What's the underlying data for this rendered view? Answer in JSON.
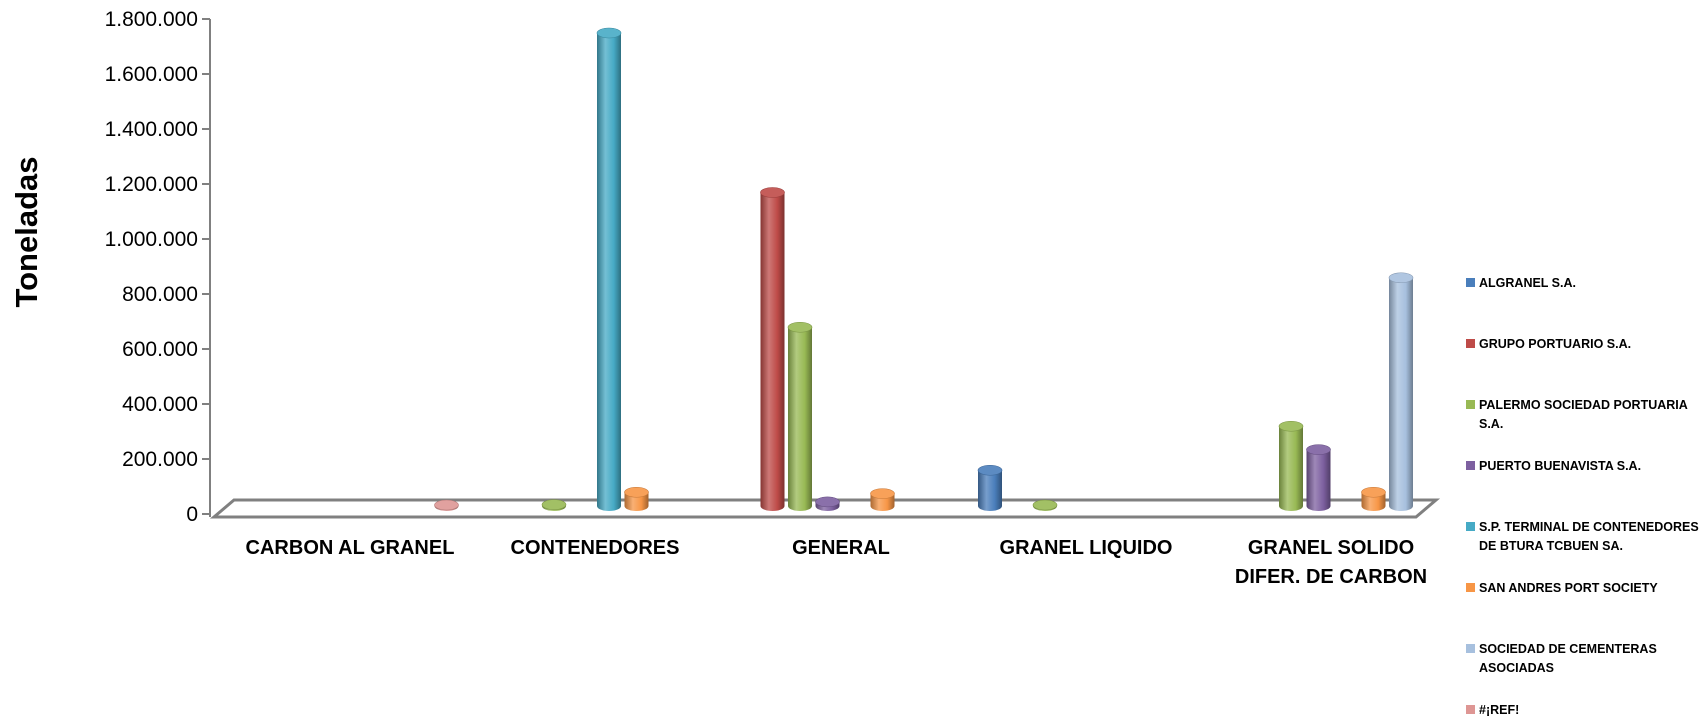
{
  "chart_data": {
    "type": "bar",
    "ylabel": "Toneladas",
    "xlabel": "",
    "ylim": [
      0,
      1800000
    ],
    "yticks": [
      0,
      200000,
      400000,
      600000,
      800000,
      1000000,
      1200000,
      1400000,
      1600000,
      1800000
    ],
    "ytick_labels": [
      "0",
      "200.000",
      "400.000",
      "600.000",
      "800.000",
      "1.000.000",
      "1.200.000",
      "1.400.000",
      "1.600.000",
      "1.800.000"
    ],
    "categories": [
      [
        "CARBON AL GRANEL"
      ],
      [
        "CONTENEDORES"
      ],
      [
        "GENERAL"
      ],
      [
        "GRANEL LIQUIDO"
      ],
      [
        "GRANEL SOLIDO",
        "DIFER. DE CARBON"
      ]
    ],
    "legend_position": "right",
    "grid": false,
    "series": [
      {
        "name": [
          "ALGRANEL S.A."
        ],
        "color": "#4a7ebb",
        "values": [
          0,
          0,
          0,
          130000,
          0
        ]
      },
      {
        "name": [
          "GRUPO PORTUARIO S.A."
        ],
        "color": "#be4b48",
        "values": [
          0,
          0,
          1140000,
          0,
          0
        ]
      },
      {
        "name": [
          "PALERMO SOCIEDAD PORTUARIA",
          "S.A."
        ],
        "color": "#98b954",
        "values": [
          0,
          5000,
          650000,
          2000,
          290000
        ]
      },
      {
        "name": [
          "PUERTO BUENAVISTA S.A."
        ],
        "color": "#7d60a0",
        "values": [
          0,
          0,
          15000,
          0,
          205000
        ]
      },
      {
        "name": [
          "S.P. TERMINAL DE CONTENEDORES",
          "DE BTURA TCBUEN SA."
        ],
        "color": "#46aac5",
        "values": [
          0,
          1720000,
          0,
          0,
          0
        ]
      },
      {
        "name": [
          "SAN ANDRES PORT SOCIETY"
        ],
        "color": "#f79646",
        "values": [
          0,
          50000,
          45000,
          0,
          50000
        ]
      },
      {
        "name": [
          "SOCIEDAD DE CEMENTERAS",
          "ASOCIADAS"
        ],
        "color": "#a7c0de",
        "values": [
          0,
          0,
          0,
          0,
          830000
        ]
      },
      {
        "name": [
          "#¡REF!"
        ],
        "color": "#de9694",
        "values": [
          500,
          0,
          0,
          0,
          0
        ]
      }
    ]
  }
}
